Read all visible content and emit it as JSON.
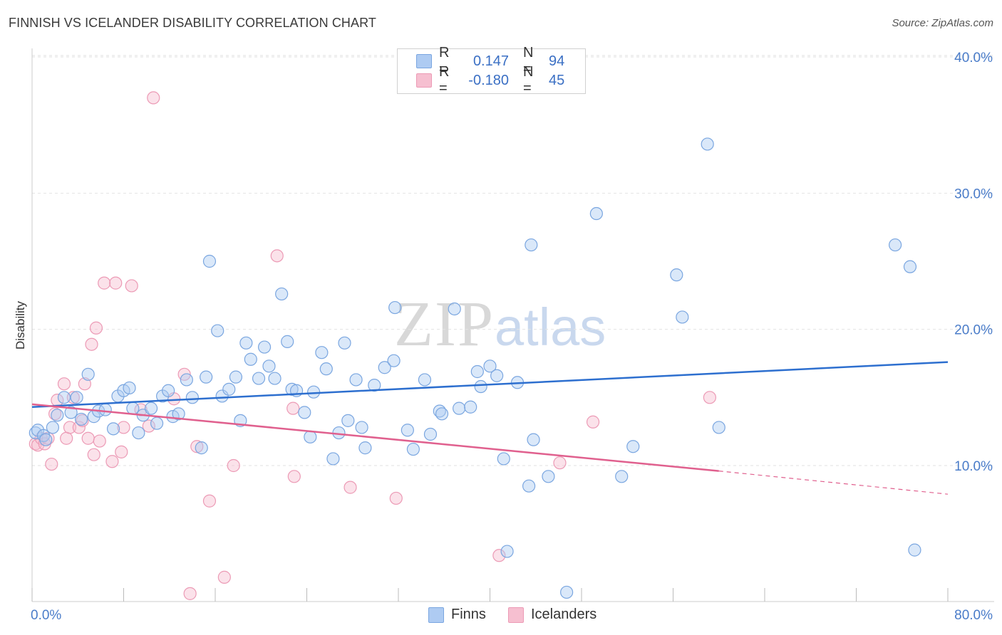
{
  "title": "FINNISH VS ICELANDER DISABILITY CORRELATION CHART",
  "source": "Source: ZipAtlas.com",
  "watermark": {
    "zip": "ZIP",
    "atlas": "atlas"
  },
  "colors": {
    "finns_fill": "#aecbf2",
    "finns_stroke": "#7aa6e0",
    "finns_line": "#2d6fcf",
    "icelanders_fill": "#f6bfd0",
    "icelanders_stroke": "#ec9ab5",
    "icelanders_line": "#e0608e",
    "tick_text": "#4a7cc9"
  },
  "legend": {
    "rows": [
      {
        "r_label": "R =",
        "r_value": "0.147",
        "n_label": "N =",
        "n_value": "94"
      },
      {
        "r_label": "R =",
        "r_value": "-0.180",
        "n_label": "N =",
        "n_value": "45"
      }
    ]
  },
  "bottom_legend": {
    "finns": "Finns",
    "icelanders": "Icelanders"
  },
  "chart_data": {
    "type": "scatter",
    "title": "FINNISH VS ICELANDER DISABILITY CORRELATION CHART",
    "xlabel": "",
    "ylabel": "Disability",
    "xlim": [
      0,
      80
    ],
    "ylim": [
      0,
      42
    ],
    "x_tick_labels": [
      "0.0%",
      "80.0%"
    ],
    "y_ticks": [
      10,
      20,
      30,
      40
    ],
    "y_tick_labels": [
      "10.0%",
      "20.0%",
      "30.0%",
      "40.0%"
    ],
    "grid": "horizontal dashed",
    "legend_position": "top-center",
    "series": [
      {
        "name": "Finns",
        "trend": {
          "x": [
            0,
            80
          ],
          "y": [
            14.3,
            17.6
          ],
          "style": "solid"
        },
        "points": [
          [
            0.3,
            12.4
          ],
          [
            0.5,
            12.6
          ],
          [
            1.0,
            12.2
          ],
          [
            1.2,
            11.9
          ],
          [
            1.8,
            12.8
          ],
          [
            2.2,
            13.7
          ],
          [
            2.8,
            15.0
          ],
          [
            3.4,
            13.9
          ],
          [
            3.9,
            15.0
          ],
          [
            4.3,
            13.4
          ],
          [
            4.9,
            16.7
          ],
          [
            5.4,
            13.6
          ],
          [
            5.8,
            14.0
          ],
          [
            6.4,
            14.1
          ],
          [
            7.1,
            12.7
          ],
          [
            7.5,
            15.1
          ],
          [
            8.0,
            15.5
          ],
          [
            8.5,
            15.7
          ],
          [
            8.8,
            14.2
          ],
          [
            9.3,
            12.4
          ],
          [
            9.7,
            13.7
          ],
          [
            10.4,
            14.2
          ],
          [
            10.9,
            13.1
          ],
          [
            11.4,
            15.1
          ],
          [
            11.9,
            15.5
          ],
          [
            12.3,
            13.6
          ],
          [
            12.8,
            13.8
          ],
          [
            13.5,
            16.3
          ],
          [
            14.0,
            15.0
          ],
          [
            14.8,
            11.3
          ],
          [
            15.2,
            16.5
          ],
          [
            15.5,
            25.0
          ],
          [
            16.2,
            19.9
          ],
          [
            16.6,
            15.1
          ],
          [
            17.2,
            15.6
          ],
          [
            17.8,
            16.5
          ],
          [
            18.2,
            13.3
          ],
          [
            18.7,
            19.0
          ],
          [
            19.1,
            17.8
          ],
          [
            19.8,
            16.4
          ],
          [
            20.3,
            18.7
          ],
          [
            20.7,
            17.3
          ],
          [
            21.2,
            16.4
          ],
          [
            21.8,
            22.6
          ],
          [
            22.3,
            19.1
          ],
          [
            22.7,
            15.6
          ],
          [
            23.1,
            15.5
          ],
          [
            23.8,
            13.9
          ],
          [
            24.3,
            12.1
          ],
          [
            24.6,
            15.4
          ],
          [
            25.3,
            18.3
          ],
          [
            25.7,
            17.1
          ],
          [
            26.3,
            10.5
          ],
          [
            26.8,
            12.4
          ],
          [
            27.3,
            19.0
          ],
          [
            27.6,
            13.3
          ],
          [
            28.3,
            16.3
          ],
          [
            28.8,
            12.8
          ],
          [
            29.1,
            11.3
          ],
          [
            29.9,
            15.9
          ],
          [
            30.8,
            17.2
          ],
          [
            31.6,
            17.7
          ],
          [
            31.7,
            21.6
          ],
          [
            32.8,
            12.6
          ],
          [
            33.3,
            11.2
          ],
          [
            34.3,
            16.3
          ],
          [
            34.8,
            12.3
          ],
          [
            35.6,
            14.0
          ],
          [
            35.8,
            13.8
          ],
          [
            36.9,
            21.5
          ],
          [
            37.3,
            14.2
          ],
          [
            38.3,
            14.3
          ],
          [
            38.9,
            16.9
          ],
          [
            39.2,
            15.8
          ],
          [
            40.0,
            17.3
          ],
          [
            40.6,
            16.6
          ],
          [
            41.2,
            10.5
          ],
          [
            41.5,
            3.7
          ],
          [
            42.4,
            16.1
          ],
          [
            43.4,
            8.5
          ],
          [
            43.6,
            26.2
          ],
          [
            43.8,
            11.9
          ],
          [
            45.1,
            9.2
          ],
          [
            46.7,
            0.7
          ],
          [
            49.3,
            28.5
          ],
          [
            51.5,
            9.2
          ],
          [
            52.5,
            11.4
          ],
          [
            56.3,
            24.0
          ],
          [
            56.8,
            20.9
          ],
          [
            59.0,
            33.6
          ],
          [
            60.0,
            12.8
          ],
          [
            75.4,
            26.2
          ],
          [
            76.7,
            24.6
          ],
          [
            77.1,
            3.8
          ]
        ]
      },
      {
        "name": "Icelanders",
        "trend": {
          "x": [
            0,
            60
          ],
          "y": [
            14.5,
            9.6
          ],
          "style": "solid",
          "extension": {
            "x": [
              60,
              80
            ],
            "y": [
              9.6,
              7.9
            ],
            "style": "dashed"
          }
        },
        "points": [
          [
            0.3,
            11.6
          ],
          [
            0.5,
            11.5
          ],
          [
            0.8,
            12.0
          ],
          [
            1.1,
            11.6
          ],
          [
            1.4,
            12.0
          ],
          [
            1.7,
            10.1
          ],
          [
            2.0,
            13.8
          ],
          [
            2.2,
            14.8
          ],
          [
            2.8,
            16.0
          ],
          [
            3.0,
            12.0
          ],
          [
            3.3,
            12.8
          ],
          [
            3.6,
            15.0
          ],
          [
            4.1,
            12.8
          ],
          [
            4.4,
            13.3
          ],
          [
            4.6,
            16.0
          ],
          [
            4.9,
            12.0
          ],
          [
            5.2,
            18.9
          ],
          [
            5.4,
            10.8
          ],
          [
            5.6,
            20.1
          ],
          [
            5.9,
            11.8
          ],
          [
            6.3,
            23.4
          ],
          [
            7.0,
            10.3
          ],
          [
            7.3,
            23.4
          ],
          [
            7.8,
            11.0
          ],
          [
            8.0,
            12.8
          ],
          [
            8.7,
            23.2
          ],
          [
            9.5,
            14.1
          ],
          [
            10.2,
            12.9
          ],
          [
            10.6,
            37.0
          ],
          [
            12.4,
            14.9
          ],
          [
            13.3,
            16.7
          ],
          [
            13.8,
            0.6
          ],
          [
            14.4,
            11.4
          ],
          [
            15.5,
            7.4
          ],
          [
            16.8,
            1.8
          ],
          [
            17.6,
            10.0
          ],
          [
            21.4,
            25.4
          ],
          [
            22.8,
            14.2
          ],
          [
            22.9,
            9.2
          ],
          [
            27.8,
            8.4
          ],
          [
            31.8,
            7.6
          ],
          [
            40.8,
            3.4
          ],
          [
            46.1,
            10.2
          ],
          [
            49.0,
            13.2
          ],
          [
            59.2,
            15.0
          ]
        ]
      }
    ]
  }
}
